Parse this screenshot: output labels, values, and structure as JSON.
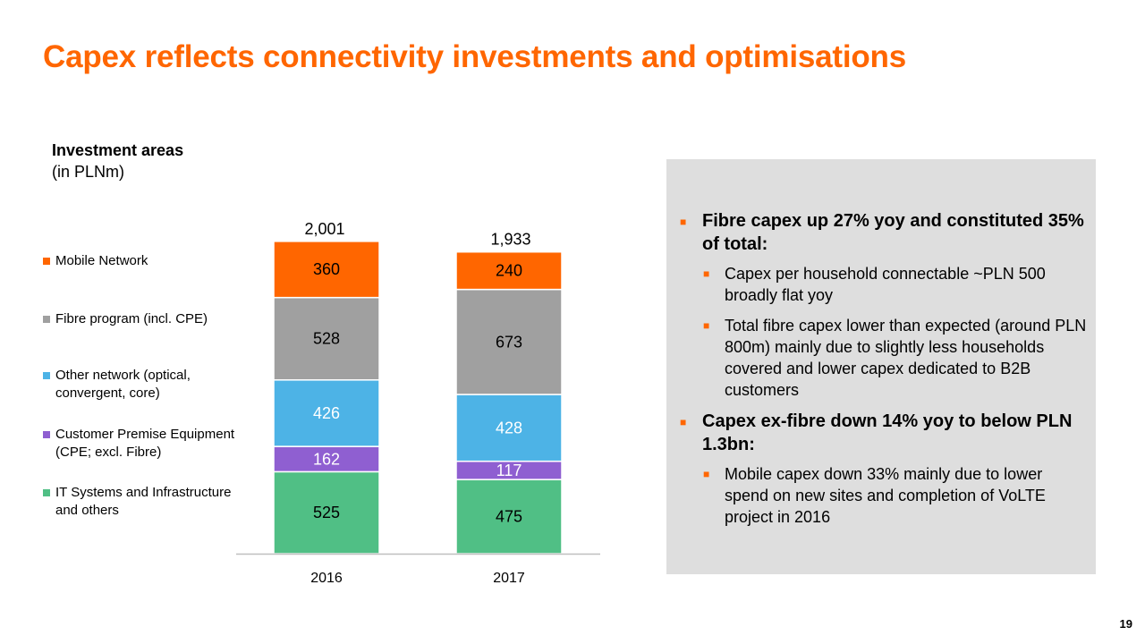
{
  "title": "Capex reflects connectivity investments and optimisations",
  "subtitle": {
    "main": "Investment areas",
    "unit": "(in PLNm)"
  },
  "legend": [
    {
      "label": "Mobile Network",
      "color": "#ff6600"
    },
    {
      "label": "Fibre program (incl. CPE)",
      "color": "#a0a0a0"
    },
    {
      "label": "Other network (optical, convergent, core)",
      "color": "#4db3e6"
    },
    {
      "label": "Customer Premise Equipment (CPE; excl. Fibre)",
      "color": "#8f5fd1"
    },
    {
      "label": "IT Systems and Infrastructure and others",
      "color": "#50bf85"
    }
  ],
  "chart_data": {
    "type": "bar",
    "stacked": true,
    "categories": [
      "2016",
      "2017"
    ],
    "totals": [
      "2,001",
      "1,933"
    ],
    "series": [
      {
        "name": "IT Systems and Infrastructure and others",
        "values": [
          525,
          475
        ],
        "color": "#50bf85",
        "label_color": "#000000"
      },
      {
        "name": "Customer Premise Equipment (CPE; excl. Fibre)",
        "values": [
          162,
          117
        ],
        "color": "#8f5fd1",
        "label_color": "#ffffff"
      },
      {
        "name": "Other network (optical, convergent, core)",
        "values": [
          426,
          428
        ],
        "color": "#4db3e6",
        "label_color": "#ffffff"
      },
      {
        "name": "Fibre program (incl. CPE)",
        "values": [
          528,
          673
        ],
        "color": "#a0a0a0",
        "label_color": "#000000"
      },
      {
        "name": "Mobile Network",
        "values": [
          360,
          240
        ],
        "color": "#ff6600",
        "label_color": "#000000"
      }
    ]
  },
  "panel": {
    "bullet1": "Fibre capex up 27% yoy and constituted 35% of total:",
    "sub1": "Capex per household connectable ~PLN 500 broadly flat yoy",
    "sub2": "Total fibre capex lower than expected (around PLN 800m) mainly due to slightly less households covered and lower capex dedicated to B2B customers",
    "bullet2": "Capex ex-fibre down 14% yoy to below PLN 1.3bn:",
    "sub3": "Mobile capex down 33% mainly due to lower spend on new sites and completion of VoLTE project in 2016",
    "marker": "■"
  },
  "page_number": "19"
}
